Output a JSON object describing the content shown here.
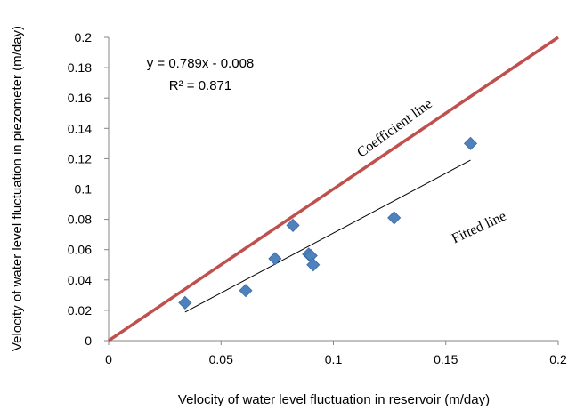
{
  "chart_data": {
    "type": "scatter",
    "xlabel": "Velocity of water level fluctuation in reservoir (m/day)",
    "ylabel": "Velocity of water level fluctuation in piezometer  (m/day)",
    "xlim": [
      0,
      0.2
    ],
    "ylim": [
      0,
      0.2
    ],
    "x_ticks": [
      "0",
      "0.05",
      "0.1",
      "0.15",
      "0.2"
    ],
    "y_ticks": [
      "0",
      "0.02",
      "0.04",
      "0.06",
      "0.08",
      "0.1",
      "0.12",
      "0.14",
      "0.16",
      "0.18",
      "0.2"
    ],
    "grid": false,
    "legend": "none",
    "points": [
      {
        "x": 0.034,
        "y": 0.025
      },
      {
        "x": 0.061,
        "y": 0.033
      },
      {
        "x": 0.074,
        "y": 0.054
      },
      {
        "x": 0.082,
        "y": 0.076
      },
      {
        "x": 0.089,
        "y": 0.057
      },
      {
        "x": 0.09,
        "y": 0.056
      },
      {
        "x": 0.091,
        "y": 0.05
      },
      {
        "x": 0.127,
        "y": 0.081
      },
      {
        "x": 0.161,
        "y": 0.13
      }
    ],
    "fitted_line": {
      "slope": 0.789,
      "intercept": -0.008,
      "x_range": [
        0.034,
        0.161
      ],
      "color": "#000000"
    },
    "coefficient_line": {
      "x": [
        0,
        0.2
      ],
      "y": [
        0,
        0.2
      ],
      "color": "#c0504d"
    },
    "marker_color": "#4f81bd",
    "equation": "y = 0.789x - 0.008",
    "r_squared": "R² = 0.871",
    "annotations": {
      "coefficient_label": "Coefficient line",
      "fitted_label": "Fitted line"
    }
  }
}
